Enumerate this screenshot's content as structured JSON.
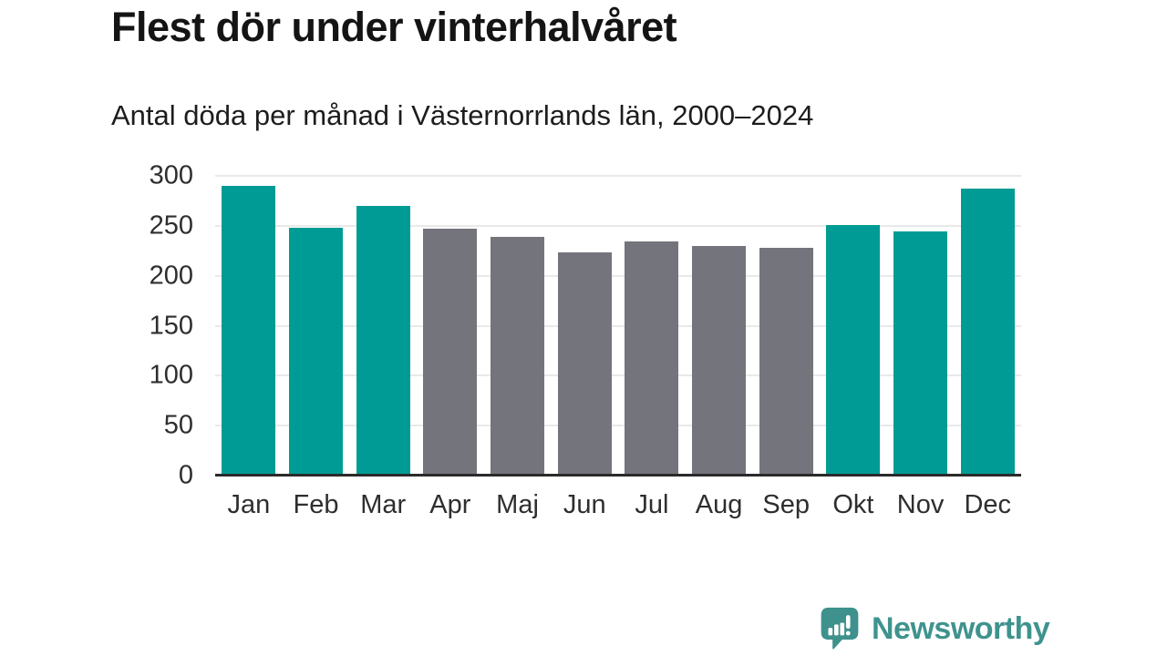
{
  "header": {
    "title": "Flest dör under vinterhalvåret",
    "subtitle": "Antal döda per månad i Västernorrlands län, 2000–2024"
  },
  "chart_data": {
    "type": "bar",
    "title": "Flest dör under vinterhalvåret",
    "subtitle": "Antal döda per månad i Västernorrlands län, 2000–2024",
    "xlabel": "",
    "ylabel": "",
    "categories": [
      "Jan",
      "Feb",
      "Mar",
      "Apr",
      "Maj",
      "Jun",
      "Jul",
      "Aug",
      "Sep",
      "Okt",
      "Nov",
      "Dec"
    ],
    "values": [
      290,
      248,
      270,
      247,
      239,
      223,
      234,
      230,
      228,
      251,
      244,
      287
    ],
    "bar_colors": [
      "#009b94",
      "#009b94",
      "#009b94",
      "#74747c",
      "#74747c",
      "#74747c",
      "#74747c",
      "#74747c",
      "#74747c",
      "#009b94",
      "#009b94",
      "#009b94"
    ],
    "highlight_color": "#009b94",
    "muted_color": "#74747c",
    "yticks": [
      0,
      50,
      100,
      150,
      200,
      250,
      300
    ],
    "ylim": [
      0,
      300
    ],
    "grid": true,
    "legend": "none"
  },
  "footer": {
    "brand": "Newsworthy",
    "logo_icon": "newsworthy-speech-bubble-bar-chart-icon",
    "brand_color": "#3f938e"
  },
  "colors": {
    "background": "#ffffff",
    "title_text": "#141414",
    "axis_text": "#2e2e2e",
    "gridline": "#e9e9e9",
    "axis_line": "#2b2b2b"
  }
}
